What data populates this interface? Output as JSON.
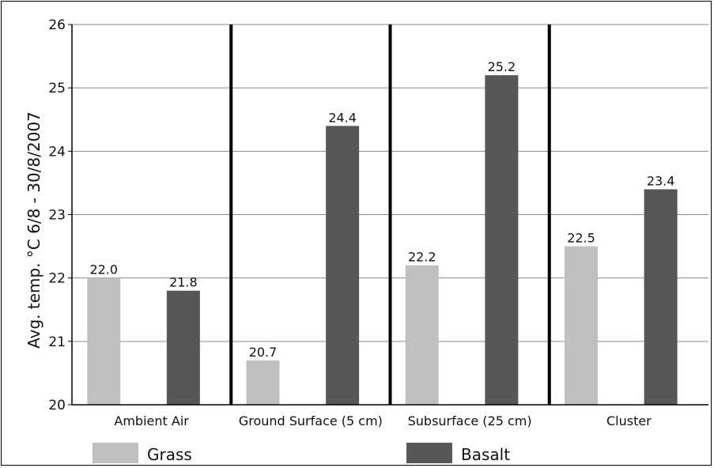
{
  "chart_data": {
    "type": "bar",
    "ylabel": "Avg. temp. °C   6/8 - 30/8/2007",
    "xlabel": "",
    "ylim": [
      20,
      26
    ],
    "yticks": [
      20,
      21,
      22,
      23,
      24,
      25,
      26
    ],
    "grid": true,
    "legend_position": "bottom",
    "categories": [
      "Ambient Air",
      "Ground Surface (5 cm)",
      "Subsurface  (25 cm)",
      "Cluster"
    ],
    "series": [
      {
        "name": "Grass",
        "color": "#c0c0c0",
        "values": [
          22.0,
          20.7,
          22.2,
          22.5
        ],
        "labels": [
          "22.0",
          "20.7",
          "22.2",
          "22.5"
        ]
      },
      {
        "name": "Basalt",
        "color": "#575757",
        "values": [
          21.8,
          24.4,
          25.2,
          23.4
        ],
        "labels": [
          "21.8",
          "24.4",
          "25.2",
          "23.4"
        ]
      }
    ]
  }
}
